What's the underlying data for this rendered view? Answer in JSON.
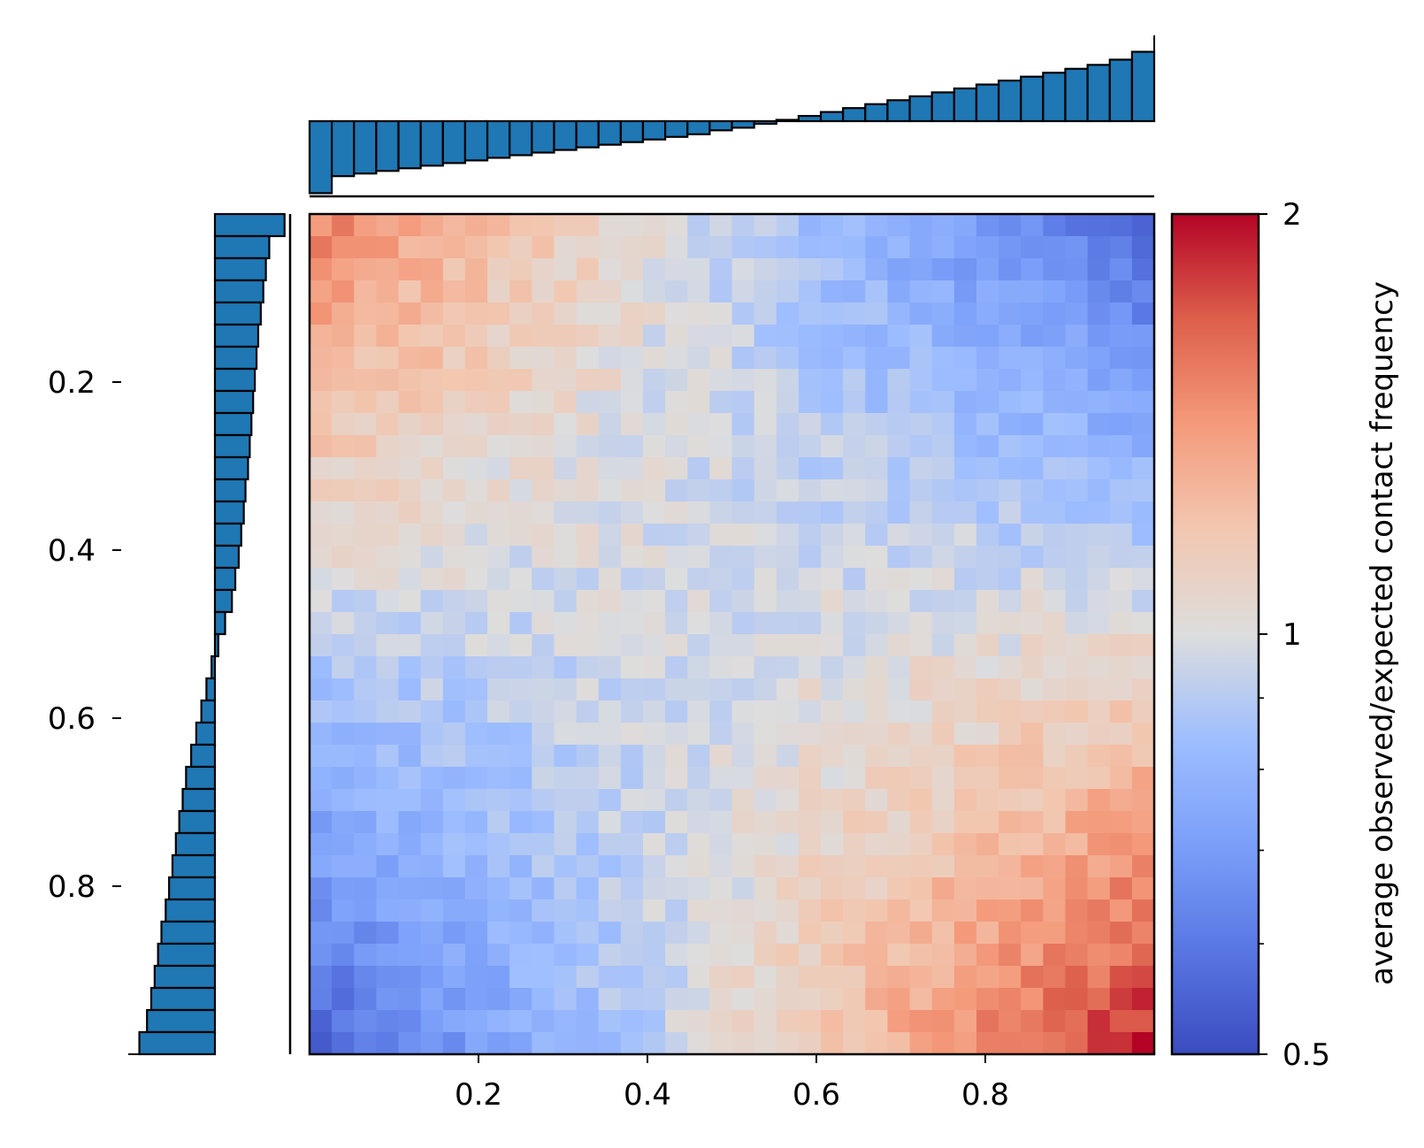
{
  "chart_data": [
    {
      "type": "heatmap",
      "grid_size": 38,
      "x_ticks": [
        0.2,
        0.4,
        0.6,
        0.8
      ],
      "x_tick_labels": [
        "0.2",
        "0.4",
        "0.6",
        "0.8"
      ],
      "y_ticks": [
        0.2,
        0.4,
        0.6,
        0.8
      ],
      "y_tick_labels": [
        "0.2",
        "0.4",
        "0.6",
        "0.8"
      ],
      "xlim": [
        0.0,
        1.0
      ],
      "ylim": [
        0.0,
        1.0
      ],
      "y_inverted": true,
      "colormap": "coolwarm",
      "color_scale": "log",
      "vmin": 0.5,
      "vmax": 2,
      "colorbar_label": "average observed/expected contact frequency",
      "colorbar_tick_labels": [
        "2",
        "1",
        "0.5"
      ],
      "pattern_description_values": {
        "top_left": 1.55,
        "top_right": 0.55,
        "bottom_left": 0.55,
        "bottom_right": 1.95,
        "center": 1.0
      }
    },
    {
      "type": "bar",
      "name": "top-marginal",
      "orientation": "vertical",
      "bins": 38,
      "values": [
        -0.55,
        -0.42,
        -0.4,
        -0.38,
        -0.36,
        -0.34,
        -0.32,
        -0.3,
        -0.28,
        -0.26,
        -0.24,
        -0.22,
        -0.2,
        -0.18,
        -0.16,
        -0.14,
        -0.12,
        -0.1,
        -0.07,
        -0.05,
        -0.02,
        0.01,
        0.04,
        0.07,
        0.1,
        0.13,
        0.16,
        0.19,
        0.22,
        0.25,
        0.28,
        0.31,
        0.34,
        0.37,
        0.4,
        0.43,
        0.47,
        0.53
      ],
      "color": "#1f77b4"
    },
    {
      "type": "bar",
      "name": "left-marginal",
      "orientation": "horizontal",
      "bins": 38,
      "values": [
        0.82,
        0.64,
        0.6,
        0.57,
        0.54,
        0.51,
        0.49,
        0.47,
        0.45,
        0.43,
        0.41,
        0.39,
        0.36,
        0.34,
        0.31,
        0.28,
        0.24,
        0.2,
        0.12,
        0.04,
        -0.04,
        -0.1,
        -0.16,
        -0.22,
        -0.28,
        -0.34,
        -0.38,
        -0.42,
        -0.46,
        -0.5,
        -0.54,
        -0.58,
        -0.63,
        -0.67,
        -0.71,
        -0.75,
        -0.8,
        -0.89
      ],
      "color": "#1f77b4"
    }
  ]
}
